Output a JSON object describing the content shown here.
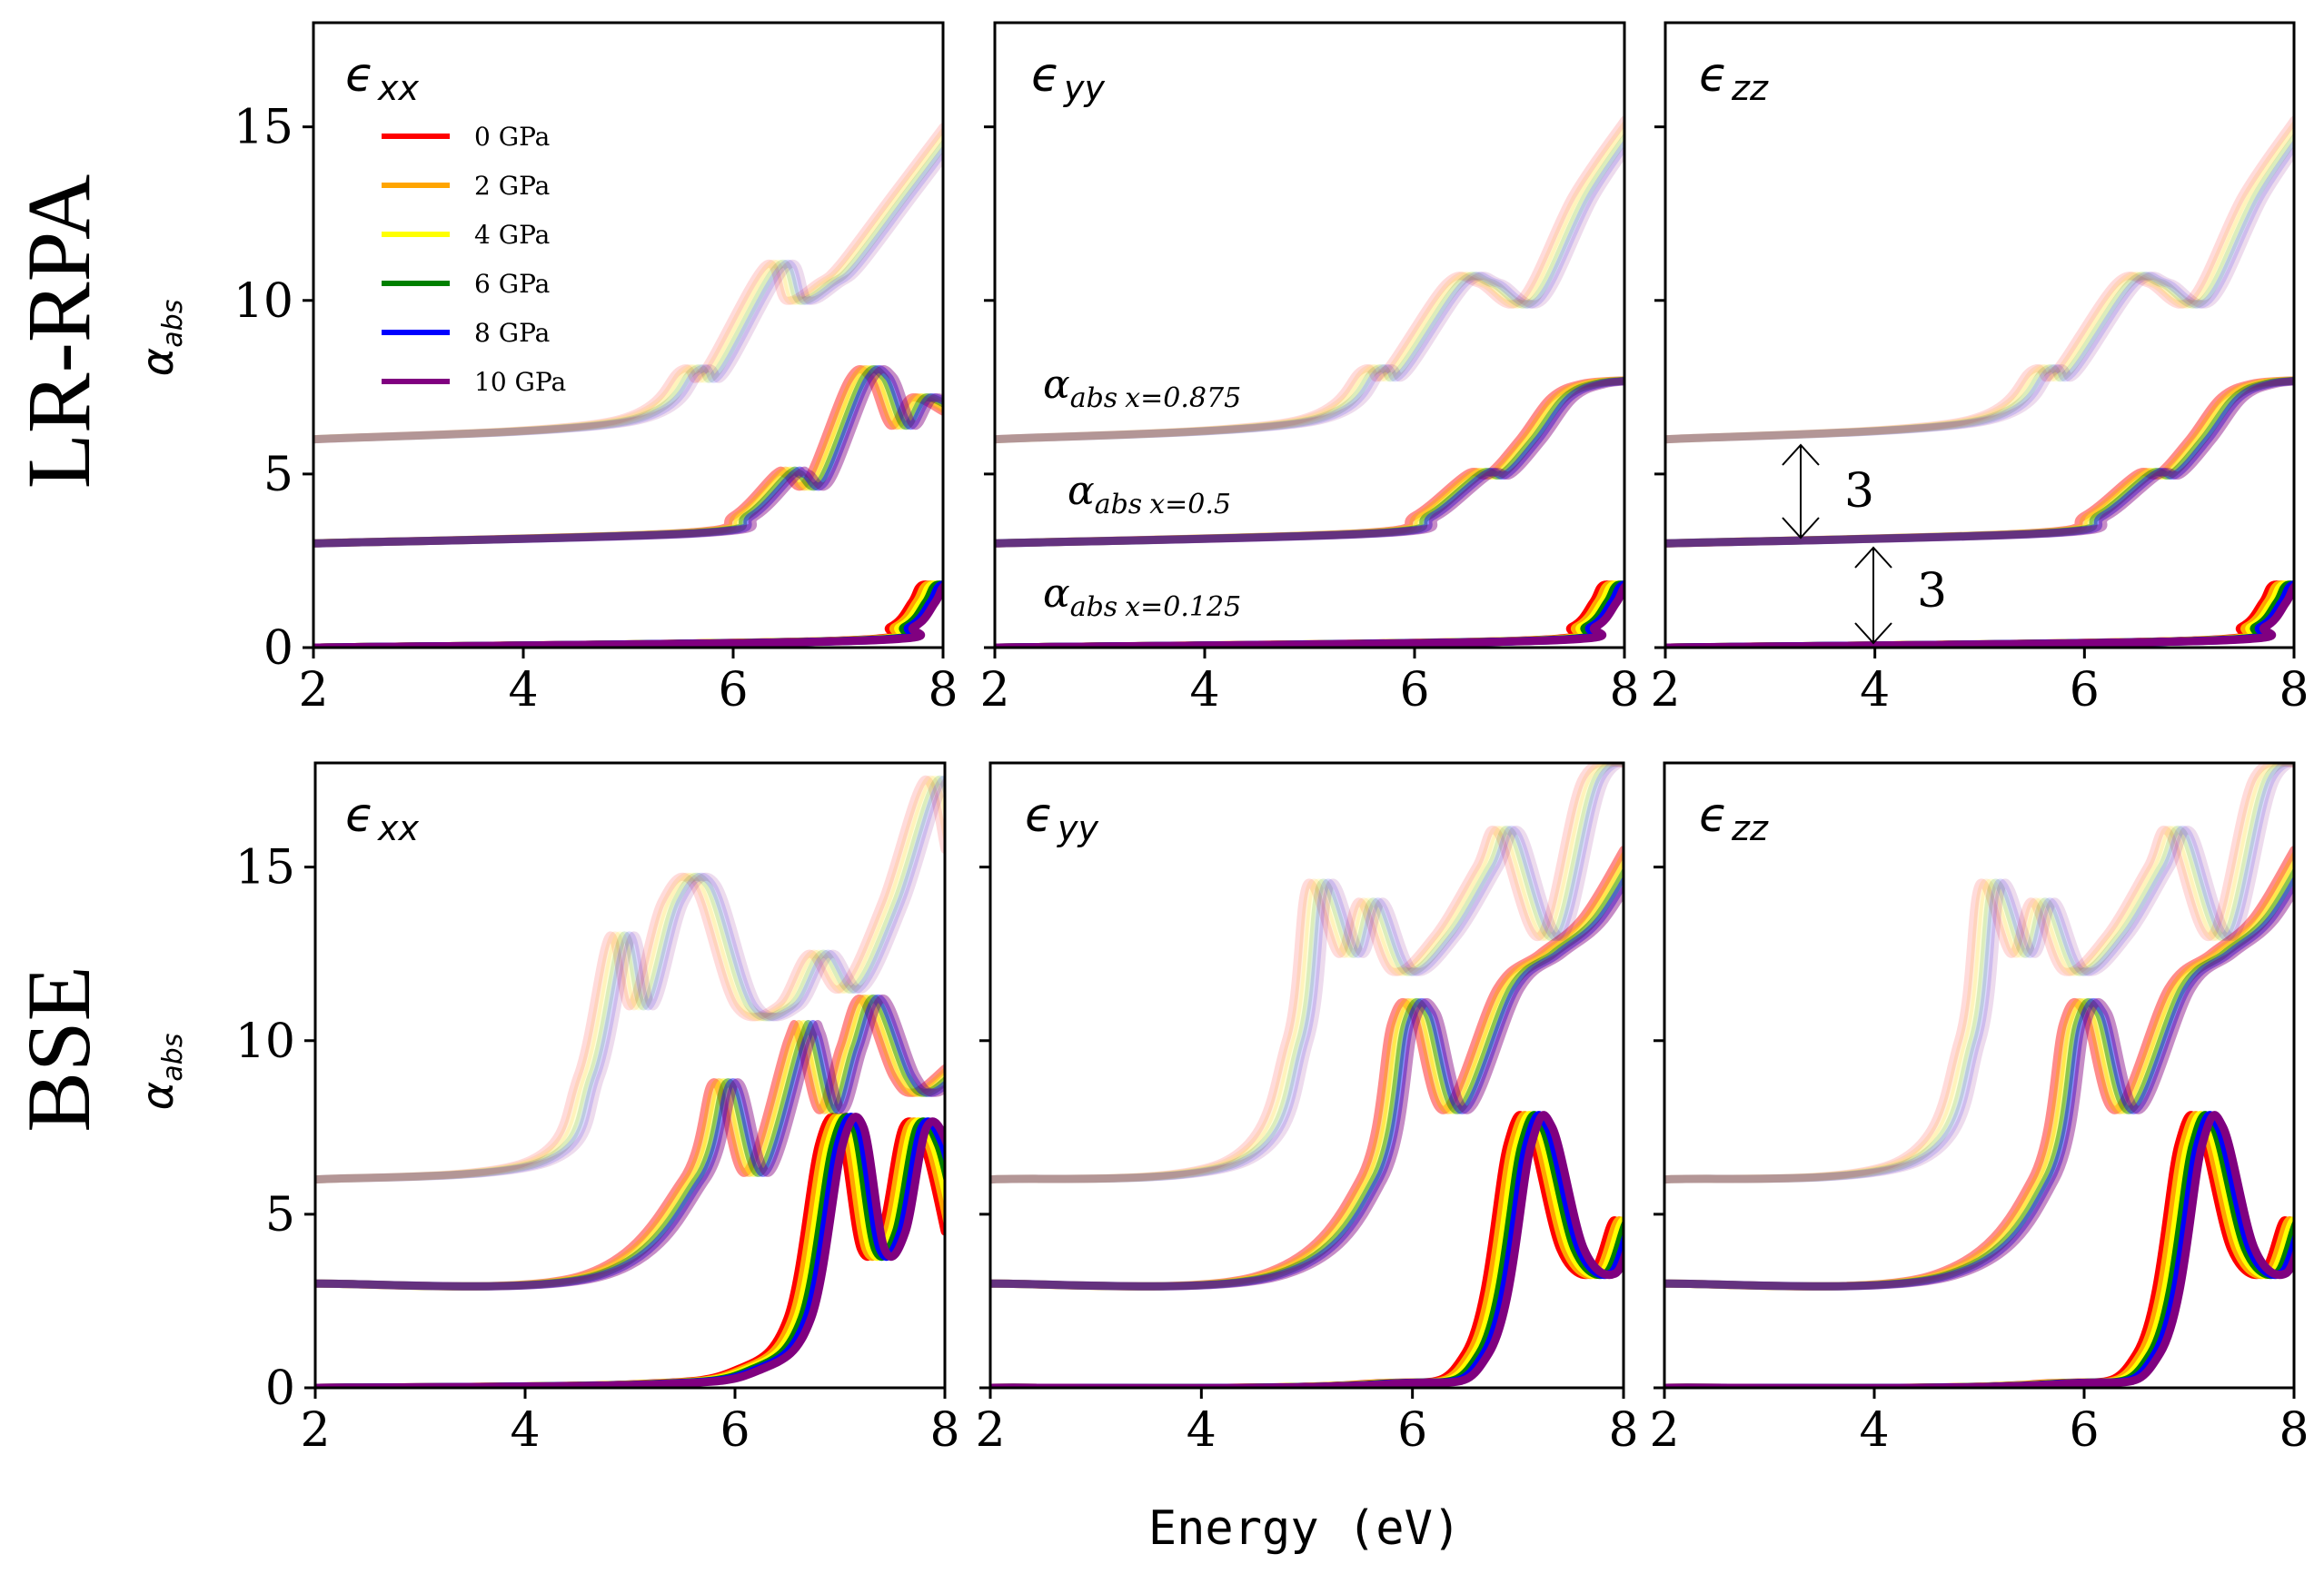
{
  "figure": {
    "x_axis_label": "Energy (eV)",
    "y_axis_label_main": "α",
    "y_axis_label_sub": "abs",
    "row_labels": [
      "LR-RPA",
      "BSE"
    ]
  },
  "legend": [
    {
      "label": "0 GPa",
      "color": "#ff0000"
    },
    {
      "label": "2 GPa",
      "color": "#ffa500"
    },
    {
      "label": "4 GPa",
      "color": "#ffff00"
    },
    {
      "label": "6 GPa",
      "color": "#008000"
    },
    {
      "label": "8 GPa",
      "color": "#0000ff"
    },
    {
      "label": "10 GPa",
      "color": "#800080"
    }
  ],
  "annotations": {
    "x0875": {
      "main": "α",
      "sub": "abs",
      "value": "x=0.875"
    },
    "x05": {
      "main": "α",
      "sub": "abs",
      "value": "x=0.5"
    },
    "x0125": {
      "main": "α",
      "sub": "abs",
      "value": "x=0.125"
    },
    "offset_top": "3",
    "offset_bottom": "3"
  },
  "chart_data": [
    {
      "type": "line",
      "method": "LR-RPA",
      "component": "xx",
      "title": "ϵ",
      "title_sub": "xx",
      "xlabel": "Energy (eV)",
      "ylabel": "αabs",
      "xlim": [
        2,
        8
      ],
      "ylim": [
        0,
        18
      ],
      "xticks": [
        "2",
        "4",
        "6",
        "8"
      ],
      "yticks": [
        "0",
        "5",
        "10",
        "15"
      ],
      "pressures_gpa": [
        0,
        2,
        4,
        6,
        8,
        10
      ],
      "series": [
        {
          "name": "x=0.125",
          "offset": 0,
          "x": [
            2,
            7.0,
            7.5,
            7.7,
            7.8,
            8.0
          ],
          "values": [
            0.0,
            0.2,
            0.6,
            1.3,
            1.8,
            1.7
          ]
        },
        {
          "name": "x=0.5",
          "offset": 3,
          "x": [
            2,
            5.5,
            6.0,
            6.4,
            6.5,
            6.7,
            7.1,
            7.3,
            7.5,
            7.7,
            8.0
          ],
          "values": [
            3.0,
            3.3,
            3.8,
            5.0,
            5.0,
            4.8,
            7.7,
            7.8,
            6.4,
            7.2,
            6.8
          ]
        },
        {
          "name": "x=0.875",
          "offset": 6,
          "x": [
            2,
            4.8,
            5.5,
            5.7,
            6.3,
            6.5,
            6.8,
            7.0,
            7.5,
            8.0
          ],
          "values": [
            6.0,
            6.5,
            8.0,
            7.9,
            11.0,
            10.0,
            10.5,
            11.0,
            13.0,
            15.0
          ]
        }
      ]
    },
    {
      "type": "line",
      "method": "LR-RPA",
      "component": "yy",
      "title": "ϵ",
      "title_sub": "yy",
      "xlabel": "Energy (eV)",
      "ylabel": "αabs",
      "xlim": [
        2,
        8
      ],
      "ylim": [
        0,
        18
      ],
      "xticks": [
        "2",
        "4",
        "6",
        "8"
      ],
      "yticks": [
        "0",
        "5",
        "10",
        "15"
      ],
      "pressures_gpa": [
        0,
        2,
        4,
        6,
        8,
        10
      ],
      "series": [
        {
          "name": "x=0.125",
          "offset": 0,
          "x": [
            2,
            7.0,
            7.5,
            7.7,
            7.8,
            8.0
          ],
          "values": [
            0.0,
            0.2,
            0.6,
            1.3,
            1.8,
            1.7
          ]
        },
        {
          "name": "x=0.5",
          "offset": 3,
          "x": [
            2,
            5.5,
            6.0,
            6.5,
            6.7,
            7.0,
            7.3,
            7.6,
            8.0
          ],
          "values": [
            3.0,
            3.3,
            3.8,
            5.0,
            5.0,
            6.0,
            7.2,
            7.6,
            7.7
          ]
        },
        {
          "name": "x=0.875",
          "offset": 6,
          "x": [
            2,
            4.8,
            5.5,
            5.7,
            6.3,
            6.6,
            7.0,
            7.5,
            8.0
          ],
          "values": [
            6.0,
            6.5,
            8.0,
            7.9,
            10.5,
            10.5,
            10.0,
            13.0,
            15.2
          ]
        }
      ]
    },
    {
      "type": "line",
      "method": "LR-RPA",
      "component": "zz",
      "title": "ϵ",
      "title_sub": "zz",
      "xlabel": "Energy (eV)",
      "ylabel": "αabs",
      "xlim": [
        2,
        8
      ],
      "ylim": [
        0,
        18
      ],
      "xticks": [
        "2",
        "4",
        "6",
        "8"
      ],
      "yticks": [
        "0",
        "5",
        "10",
        "15"
      ],
      "pressures_gpa": [
        0,
        2,
        4,
        6,
        8,
        10
      ],
      "series": [
        {
          "name": "x=0.125",
          "offset": 0,
          "x": [
            2,
            7.0,
            7.5,
            7.7,
            7.8,
            8.0
          ],
          "values": [
            0.0,
            0.2,
            0.6,
            1.3,
            1.8,
            1.7
          ]
        },
        {
          "name": "x=0.5",
          "offset": 3,
          "x": [
            2,
            5.5,
            6.0,
            6.5,
            6.7,
            7.0,
            7.3,
            7.6,
            8.0
          ],
          "values": [
            3.0,
            3.3,
            3.8,
            5.0,
            5.0,
            6.0,
            7.2,
            7.6,
            7.7
          ]
        },
        {
          "name": "x=0.875",
          "offset": 6,
          "x": [
            2,
            4.8,
            5.5,
            5.7,
            6.3,
            6.6,
            7.0,
            7.5,
            8.0
          ],
          "values": [
            6.0,
            6.5,
            8.0,
            7.9,
            10.5,
            10.5,
            10.0,
            13.0,
            15.2
          ]
        }
      ]
    },
    {
      "type": "line",
      "method": "BSE",
      "component": "xx",
      "title": "ϵ",
      "title_sub": "xx",
      "xlabel": "Energy (eV)",
      "ylabel": "αabs",
      "xlim": [
        2,
        8
      ],
      "ylim": [
        0,
        18
      ],
      "xticks": [
        "2",
        "4",
        "6",
        "8"
      ],
      "yticks": [
        "0",
        "5",
        "10",
        "15"
      ],
      "pressures_gpa": [
        0,
        2,
        4,
        6,
        8,
        10
      ],
      "series": [
        {
          "name": "x=0.125",
          "offset": 0,
          "x": [
            2,
            5.0,
            6.0,
            6.5,
            6.8,
            7.0,
            7.2,
            7.4,
            7.6,
            7.8,
            8.0
          ],
          "values": [
            0.0,
            0.1,
            0.5,
            2.0,
            7.0,
            7.5,
            4.0,
            4.5,
            7.5,
            7.0,
            4.5
          ]
        },
        {
          "name": "x=0.5",
          "offset": 3,
          "x": [
            2,
            4.5,
            5.5,
            5.8,
            6.1,
            6.5,
            6.6,
            6.8,
            7.0,
            7.2,
            7.5,
            7.7,
            8.0
          ],
          "values": [
            3.0,
            3.2,
            6.0,
            8.8,
            6.2,
            10.0,
            10.2,
            8.0,
            9.8,
            11.2,
            9.0,
            8.5,
            9.2
          ]
        },
        {
          "name": "x=0.875",
          "offset": 6,
          "x": [
            2,
            4.0,
            4.5,
            4.8,
            5.0,
            5.3,
            5.6,
            6.0,
            6.4,
            6.7,
            7.0,
            7.4,
            7.8,
            8.0
          ],
          "values": [
            6.0,
            6.5,
            9.0,
            13.0,
            11.0,
            14.0,
            14.5,
            11.0,
            11.0,
            12.5,
            11.5,
            14.0,
            17.5,
            15.5
          ]
        }
      ]
    },
    {
      "type": "line",
      "method": "BSE",
      "component": "yy",
      "title": "ϵ",
      "title_sub": "yy",
      "xlabel": "Energy (eV)",
      "ylabel": "αabs",
      "xlim": [
        2,
        8
      ],
      "ylim": [
        0,
        18
      ],
      "xticks": [
        "2",
        "4",
        "6",
        "8"
      ],
      "yticks": [
        "0",
        "5",
        "10",
        "15"
      ],
      "pressures_gpa": [
        0,
        2,
        4,
        6,
        8,
        10
      ],
      "series": [
        {
          "name": "x=0.125",
          "offset": 0,
          "x": [
            2,
            5.5,
            6.5,
            6.9,
            7.1,
            7.4,
            7.7,
            7.9,
            8.0
          ],
          "values": [
            0.0,
            0.1,
            1.0,
            7.0,
            7.5,
            4.0,
            3.3,
            4.8,
            4.2
          ]
        },
        {
          "name": "x=0.5",
          "offset": 3,
          "x": [
            2,
            4.5,
            5.5,
            5.8,
            6.0,
            6.3,
            6.8,
            7.2,
            7.6,
            8.0
          ],
          "values": [
            3.0,
            3.2,
            6.0,
            10.5,
            10.8,
            8.0,
            11.5,
            12.5,
            13.5,
            15.5
          ]
        },
        {
          "name": "x=0.875",
          "offset": 6,
          "x": [
            2,
            4.2,
            4.8,
            5.0,
            5.3,
            5.5,
            5.8,
            6.2,
            6.6,
            6.8,
            7.2,
            7.6,
            8.0
          ],
          "values": [
            6.0,
            6.5,
            10.0,
            14.5,
            12.5,
            14.0,
            12.0,
            13.0,
            15.0,
            16.0,
            13.0,
            17.5,
            18.0
          ]
        }
      ]
    },
    {
      "type": "line",
      "method": "BSE",
      "component": "zz",
      "title": "ϵ",
      "title_sub": "zz",
      "xlabel": "Energy (eV)",
      "ylabel": "αabs",
      "xlim": [
        2,
        8
      ],
      "ylim": [
        0,
        18
      ],
      "xticks": [
        "2",
        "4",
        "6",
        "8"
      ],
      "yticks": [
        "0",
        "5",
        "10",
        "15"
      ],
      "pressures_gpa": [
        0,
        2,
        4,
        6,
        8,
        10
      ],
      "series": [
        {
          "name": "x=0.125",
          "offset": 0,
          "x": [
            2,
            5.5,
            6.5,
            6.9,
            7.1,
            7.4,
            7.7,
            7.9,
            8.0
          ],
          "values": [
            0.0,
            0.1,
            1.0,
            7.0,
            7.5,
            4.0,
            3.3,
            4.8,
            4.2
          ]
        },
        {
          "name": "x=0.5",
          "offset": 3,
          "x": [
            2,
            4.5,
            5.5,
            5.8,
            6.0,
            6.3,
            6.8,
            7.2,
            7.6,
            8.0
          ],
          "values": [
            3.0,
            3.2,
            6.0,
            10.5,
            10.8,
            8.0,
            11.5,
            12.5,
            13.5,
            15.5
          ]
        },
        {
          "name": "x=0.875",
          "offset": 6,
          "x": [
            2,
            4.2,
            4.8,
            5.0,
            5.3,
            5.5,
            5.8,
            6.2,
            6.6,
            6.8,
            7.2,
            7.6,
            8.0
          ],
          "values": [
            6.0,
            6.5,
            10.0,
            14.5,
            12.5,
            14.0,
            12.0,
            13.0,
            15.0,
            16.0,
            13.0,
            17.5,
            18.0
          ]
        }
      ]
    }
  ]
}
